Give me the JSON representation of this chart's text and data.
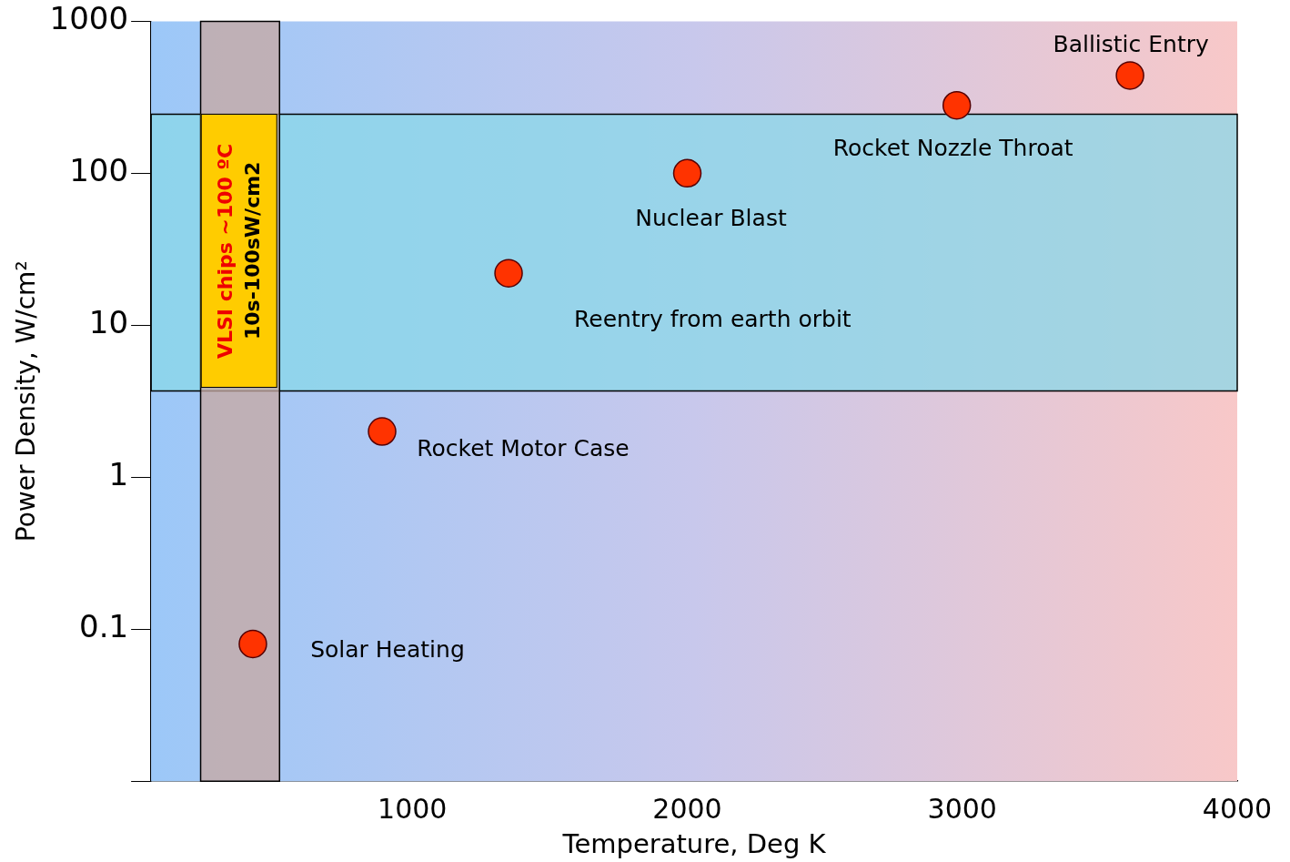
{
  "chart_data": {
    "type": "scatter",
    "xlabel": "Temperature, Deg K",
    "ylabel": "Power Density, W/cm²",
    "x": [
      420,
      890,
      1350,
      2000,
      2980,
      3610
    ],
    "series": [
      {
        "color": "#ff3300",
        "values": [
          0.08,
          2,
          22,
          100,
          280,
          440
        ]
      }
    ],
    "marker": "circle",
    "log": "y",
    "grid": false,
    "legend": false,
    "xlim": [
      50,
      4000
    ],
    "xticks": [
      1000,
      2000,
      3000,
      4000
    ],
    "ylim": [
      0.01,
      1000
    ],
    "yticks": [
      {
        "value": 0.01,
        "label": null
      },
      0.1,
      1,
      10,
      100,
      1000
    ],
    "bands": [
      {
        "axis": "y",
        "from": 3.7,
        "to": 245,
        "color": "#8ad8e8"
      },
      {
        "axis": "x",
        "from": 230,
        "to": 517,
        "label": "VLSI chips ~100 ºC\n10s-100sW/cm2",
        "color": "#c8a8a0"
      }
    ],
    "annotations": [
      {
        "text": "Solar Heating",
        "x": 420,
        "y": 0.08
      },
      {
        "text": "Rocket Motor Case",
        "x": 890,
        "y": 2
      },
      "Reentry from earth orbit",
      {
        "text": "Nuclear Blast",
        "x": 2000,
        "y": 100
      },
      {
        "text": "Rocket Nozzle Throat",
        "x": 2980,
        "y": 280
      },
      {
        "text": "Ballistic Entry",
        "x": 3610,
        "y": 440
      }
    ]
  }
}
